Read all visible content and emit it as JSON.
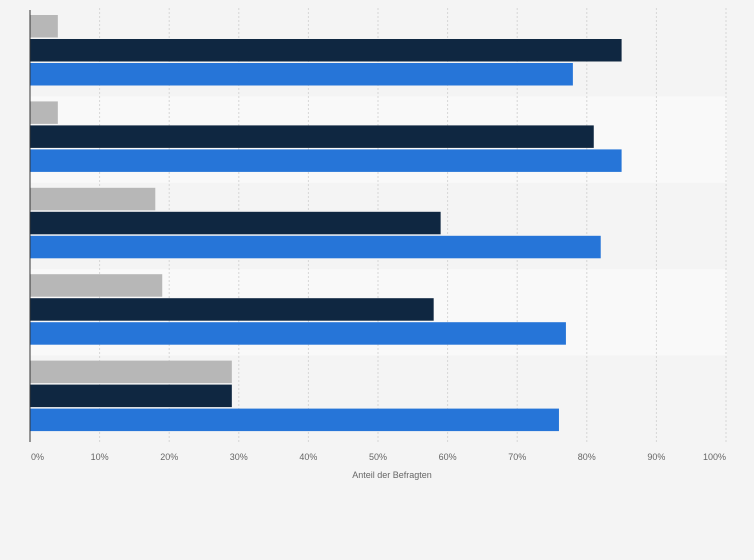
{
  "chart_data": {
    "type": "bar",
    "orientation": "horizontal",
    "title": "",
    "xlabel": "Anteil der Befragten",
    "ylabel": "",
    "xlim": [
      0,
      100
    ],
    "x_ticks": [
      "0%",
      "10%",
      "20%",
      "30%",
      "40%",
      "50%",
      "60%",
      "70%",
      "80%",
      "90%",
      "100%"
    ],
    "categories": [
      "",
      "",
      "",
      "",
      ""
    ],
    "series": [
      {
        "name": "",
        "color": "#b7b7b7",
        "values": [
          4,
          4,
          18,
          19,
          29
        ]
      },
      {
        "name": "",
        "color": "#0f2741",
        "values": [
          85,
          81,
          59,
          58,
          29
        ]
      },
      {
        "name": "",
        "color": "#2675d8",
        "values": [
          78,
          85,
          82,
          77,
          76
        ]
      }
    ],
    "grid": true,
    "legend": "none"
  }
}
